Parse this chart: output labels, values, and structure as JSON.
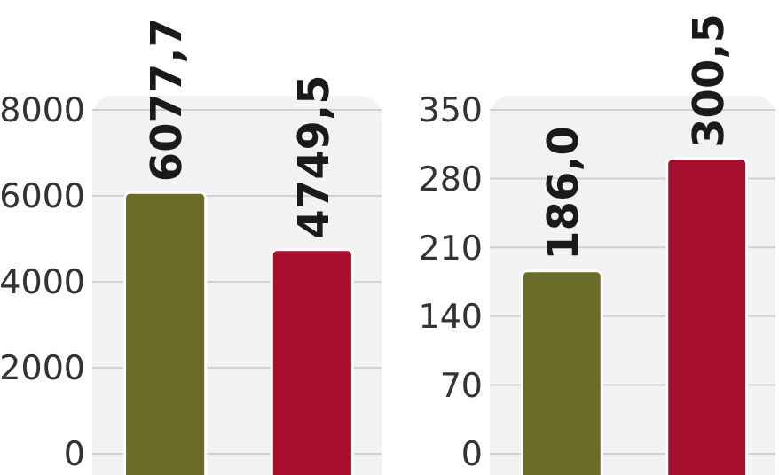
{
  "chart_data": [
    {
      "type": "bar",
      "categories": [
        null,
        null
      ],
      "values": [
        6077.7,
        4749.5
      ],
      "colors": [
        "#6b6b2a",
        "#a50f2d"
      ],
      "value_labels": [
        "6077,7",
        "4749,5"
      ],
      "ylim": [
        0,
        8000
      ],
      "yticks": [
        0,
        2000,
        4000,
        6000,
        8000
      ],
      "grid": "y"
    },
    {
      "type": "bar",
      "categories": [
        null,
        null
      ],
      "values": [
        186.0,
        300.5
      ],
      "colors": [
        "#6b6b2a",
        "#a50f2d"
      ],
      "value_labels": [
        "186,0",
        "300,5"
      ],
      "ylim": [
        0,
        350
      ],
      "yticks": [
        0,
        70,
        140,
        210,
        280,
        350
      ],
      "grid": "y"
    }
  ]
}
